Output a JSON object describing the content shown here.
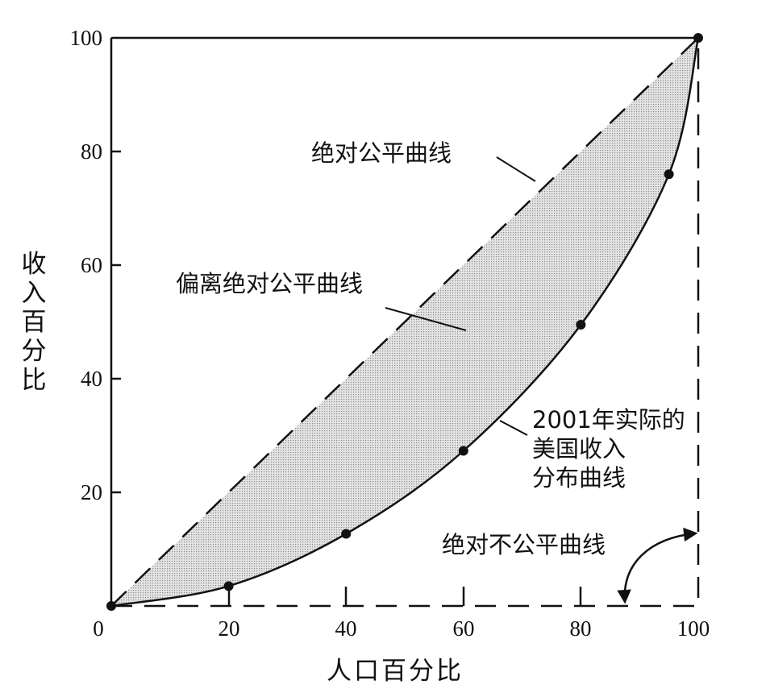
{
  "chart_data": {
    "type": "line",
    "title": "",
    "xlabel": "人口百分比",
    "ylabel": "收入百分比",
    "ylabel_chars": [
      "收",
      "入",
      "百",
      "分",
      "比"
    ],
    "xlim": [
      0,
      100
    ],
    "ylim": [
      0,
      100
    ],
    "x_ticks": [
      "0",
      "20",
      "40",
      "60",
      "80",
      "100"
    ],
    "y_ticks": [
      "20",
      "40",
      "60",
      "80",
      "100"
    ],
    "series": [
      {
        "name": "2001年实际的美国收入分布曲线",
        "style": "solid-with-markers",
        "x": [
          0,
          20,
          40,
          60,
          80,
          95,
          100
        ],
        "y": [
          0,
          3.5,
          12.7,
          27.3,
          49.5,
          76,
          100
        ]
      },
      {
        "name": "绝对公平曲线",
        "style": "dashed",
        "x": [
          0,
          100
        ],
        "y": [
          0,
          100
        ]
      },
      {
        "name": "绝对不公平曲线",
        "style": "dashed",
        "x": [
          0,
          100,
          100
        ],
        "y": [
          0,
          0,
          100
        ]
      }
    ],
    "shaded_region": "偏离绝对公平曲线",
    "annotations": {
      "equality": "绝对公平曲线",
      "deviation": "偏离绝对公平曲线",
      "actual": [
        "2001年实际的",
        "美国收入",
        "分布曲线"
      ],
      "inequality": "绝对不公平曲线"
    },
    "colors": {
      "ink": "#111111",
      "shade": "#c8c8c8"
    }
  }
}
